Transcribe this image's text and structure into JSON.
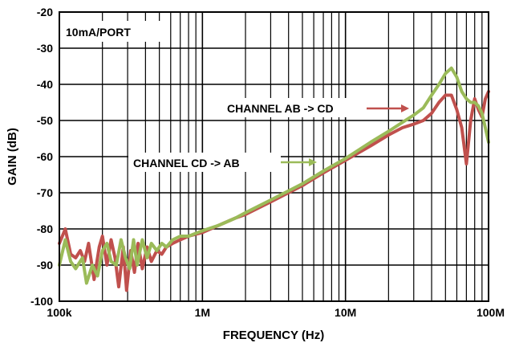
{
  "chart_data": {
    "type": "line",
    "xlabel": "FREQUENCY (Hz)",
    "ylabel": "GAIN (dB)",
    "x_scale": "log",
    "xlim": [
      100000,
      100000000
    ],
    "ylim": [
      -100,
      -20
    ],
    "x_ticks": [
      {
        "value": 100000,
        "label": "100k"
      },
      {
        "value": 1000000,
        "label": "1M"
      },
      {
        "value": 10000000,
        "label": "10M"
      },
      {
        "value": 100000000,
        "label": "100M"
      }
    ],
    "y_ticks": [
      {
        "value": -20,
        "label": "-20"
      },
      {
        "value": -30,
        "label": "-30"
      },
      {
        "value": -40,
        "label": "-40"
      },
      {
        "value": -50,
        "label": "-50"
      },
      {
        "value": -60,
        "label": "-60"
      },
      {
        "value": -70,
        "label": "-70"
      },
      {
        "value": -80,
        "label": "-80"
      },
      {
        "value": -90,
        "label": "-90"
      },
      {
        "value": -100,
        "label": "-100"
      }
    ],
    "grid": true,
    "series": [
      {
        "name": "CHANNEL AB -> CD",
        "color": "#c0504d",
        "points": [
          [
            100000,
            -84
          ],
          [
            110000,
            -80
          ],
          [
            120000,
            -87
          ],
          [
            130000,
            -88
          ],
          [
            140000,
            -86
          ],
          [
            150000,
            -89
          ],
          [
            160000,
            -84
          ],
          [
            175000,
            -94
          ],
          [
            190000,
            -85
          ],
          [
            200000,
            -82
          ],
          [
            215000,
            -90
          ],
          [
            230000,
            -83
          ],
          [
            245000,
            -88
          ],
          [
            260000,
            -96
          ],
          [
            280000,
            -85
          ],
          [
            295000,
            -97
          ],
          [
            315000,
            -86
          ],
          [
            335000,
            -92
          ],
          [
            355000,
            -84
          ],
          [
            380000,
            -91
          ],
          [
            410000,
            -85
          ],
          [
            440000,
            -89
          ],
          [
            480000,
            -86
          ],
          [
            520000,
            -87
          ],
          [
            560000,
            -85
          ],
          [
            620000,
            -84
          ],
          [
            700000,
            -83
          ],
          [
            800000,
            -82
          ],
          [
            1000000,
            -81
          ],
          [
            1300000,
            -79
          ],
          [
            1700000,
            -77
          ],
          [
            2000000,
            -76
          ],
          [
            3000000,
            -72.5
          ],
          [
            5000000,
            -68
          ],
          [
            7000000,
            -64.5
          ],
          [
            10000000,
            -61
          ],
          [
            15000000,
            -57
          ],
          [
            20000000,
            -54
          ],
          [
            25000000,
            -52
          ],
          [
            30000000,
            -51
          ],
          [
            35000000,
            -50
          ],
          [
            40000000,
            -48
          ],
          [
            45000000,
            -45
          ],
          [
            50000000,
            -43
          ],
          [
            55000000,
            -43
          ],
          [
            60000000,
            -47
          ],
          [
            65000000,
            -52
          ],
          [
            70000000,
            -62
          ],
          [
            75000000,
            -50
          ],
          [
            80000000,
            -44
          ],
          [
            85000000,
            -47
          ],
          [
            90000000,
            -49
          ],
          [
            95000000,
            -44
          ],
          [
            100000000,
            -42
          ]
        ]
      },
      {
        "name": "CHANNEL CD -> AB",
        "color": "#9bbb59",
        "points": [
          [
            100000,
            -90
          ],
          [
            110000,
            -83
          ],
          [
            120000,
            -89
          ],
          [
            130000,
            -91
          ],
          [
            145000,
            -88
          ],
          [
            155000,
            -95
          ],
          [
            170000,
            -90
          ],
          [
            185000,
            -93
          ],
          [
            200000,
            -86
          ],
          [
            215000,
            -84
          ],
          [
            230000,
            -89
          ],
          [
            250000,
            -90
          ],
          [
            270000,
            -83
          ],
          [
            290000,
            -88
          ],
          [
            310000,
            -91
          ],
          [
            330000,
            -83
          ],
          [
            350000,
            -90
          ],
          [
            380000,
            -83
          ],
          [
            410000,
            -88
          ],
          [
            440000,
            -84
          ],
          [
            480000,
            -86
          ],
          [
            520000,
            -84
          ],
          [
            560000,
            -85
          ],
          [
            620000,
            -83
          ],
          [
            700000,
            -82
          ],
          [
            800000,
            -82
          ],
          [
            1000000,
            -80.5
          ],
          [
            1300000,
            -79
          ],
          [
            1700000,
            -77
          ],
          [
            2000000,
            -75.5
          ],
          [
            3000000,
            -72
          ],
          [
            5000000,
            -67.5
          ],
          [
            7000000,
            -64
          ],
          [
            10000000,
            -60.5
          ],
          [
            15000000,
            -56
          ],
          [
            20000000,
            -53
          ],
          [
            25000000,
            -50.5
          ],
          [
            30000000,
            -48.5
          ],
          [
            35000000,
            -46.5
          ],
          [
            40000000,
            -43
          ],
          [
            45000000,
            -40
          ],
          [
            50000000,
            -37
          ],
          [
            55000000,
            -35.5
          ],
          [
            60000000,
            -38
          ],
          [
            65000000,
            -42
          ],
          [
            70000000,
            -44
          ],
          [
            75000000,
            -45
          ],
          [
            80000000,
            -45
          ],
          [
            85000000,
            -46
          ],
          [
            90000000,
            -48
          ],
          [
            95000000,
            -52
          ],
          [
            100000000,
            -56
          ]
        ]
      }
    ],
    "annotations": [
      {
        "text": "10mA/PORT"
      },
      {
        "text": "CHANNEL AB -> CD",
        "series": "CHANNEL AB -> CD",
        "color": "#c0504d",
        "point_x": 30000000,
        "point_y": -51
      },
      {
        "text": "CHANNEL CD -> AB",
        "series": "CHANNEL CD -> AB",
        "color": "#9bbb59",
        "point_x": 7000000,
        "point_y": -62
      }
    ]
  }
}
